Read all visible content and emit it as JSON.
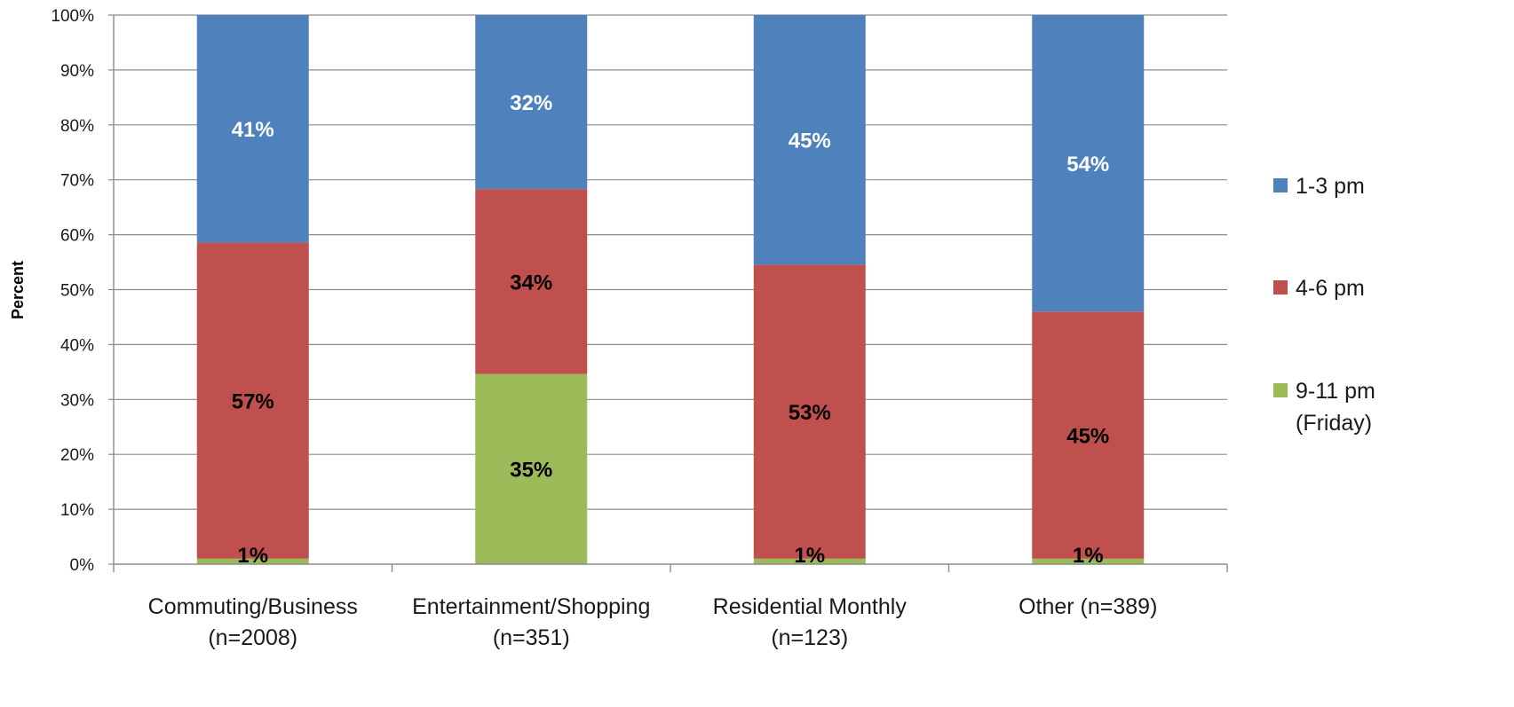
{
  "chart_data": {
    "type": "bar",
    "stacked": true,
    "percent_stacked": true,
    "title": "",
    "xlabel": "",
    "ylabel": "Percent",
    "ylim": [
      0,
      100
    ],
    "y_ticks": [
      "0%",
      "10%",
      "20%",
      "30%",
      "40%",
      "50%",
      "60%",
      "70%",
      "80%",
      "90%",
      "100%"
    ],
    "categories": [
      [
        "Commuting/Business",
        "(n=2008)"
      ],
      [
        "Entertainment/Shopping",
        "(n=351)"
      ],
      [
        "Residential Monthly",
        "(n=123)"
      ],
      [
        "Other (n=389)"
      ]
    ],
    "series": [
      {
        "name": [
          "9-11 pm",
          "(Friday)"
        ],
        "color": "#9bbb59",
        "label_color": "#000000",
        "values": [
          1,
          35,
          1,
          1
        ],
        "labels": [
          "1%",
          "35%",
          "1%",
          "1%"
        ]
      },
      {
        "name": [
          "4-6 pm"
        ],
        "color": "#c0504d",
        "label_color": "#000000",
        "values": [
          57,
          34,
          53,
          45
        ],
        "labels": [
          "57%",
          "34%",
          "53%",
          "45%"
        ]
      },
      {
        "name": [
          "1-3 pm"
        ],
        "color": "#4f81bd",
        "label_color": "#ffffff",
        "values": [
          41,
          32,
          45,
          54
        ],
        "labels": [
          "41%",
          "32%",
          "45%",
          "54%"
        ]
      }
    ],
    "grid": true,
    "legend": "right"
  }
}
